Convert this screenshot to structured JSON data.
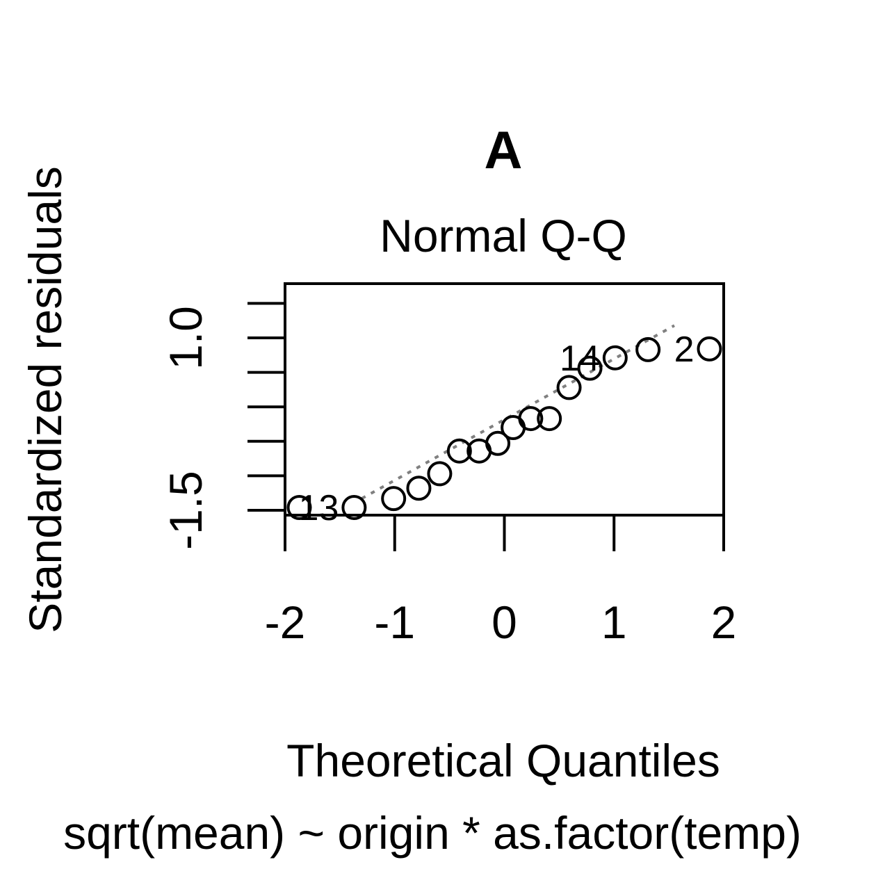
{
  "chart_data": {
    "type": "scatter",
    "panel_label": "A",
    "title": "Normal Q-Q",
    "xlabel": "Theoretical Quantiles",
    "ylabel": "Standardized residuals",
    "subtitle": "sqrt(mean) ~ origin * as.factor(temp)",
    "xlim": [
      -2.0,
      2.0
    ],
    "ylim": [
      -1.5,
      1.2
    ],
    "x_ticks": [
      -2,
      -1,
      0,
      1,
      2
    ],
    "x_tick_labels": [
      "-2",
      "-1",
      "0",
      "1",
      "2"
    ],
    "y_ticks": [
      -1.5,
      -1.0,
      -0.5,
      0.0,
      0.5,
      1.0,
      1.5
    ],
    "y_tick_labels": [
      "-1.5",
      "",
      "",
      "",
      "",
      "1.0",
      ""
    ],
    "points": [
      {
        "x": -1.87,
        "y": -1.46,
        "label": ""
      },
      {
        "x": -1.37,
        "y": -1.46,
        "label": "13"
      },
      {
        "x": -1.01,
        "y": -1.33,
        "label": ""
      },
      {
        "x": -0.78,
        "y": -1.18,
        "label": ""
      },
      {
        "x": -0.59,
        "y": -0.97,
        "label": ""
      },
      {
        "x": -0.41,
        "y": -0.64,
        "label": ""
      },
      {
        "x": -0.23,
        "y": -0.64,
        "label": ""
      },
      {
        "x": -0.06,
        "y": -0.53,
        "label": ""
      },
      {
        "x": 0.08,
        "y": -0.3,
        "label": ""
      },
      {
        "x": 0.24,
        "y": -0.17,
        "label": ""
      },
      {
        "x": 0.41,
        "y": -0.17,
        "label": ""
      },
      {
        "x": 0.59,
        "y": 0.28,
        "label": ""
      },
      {
        "x": 0.78,
        "y": 0.56,
        "label": ""
      },
      {
        "x": 1.01,
        "y": 0.71,
        "label": "14"
      },
      {
        "x": 1.31,
        "y": 0.83,
        "label": ""
      },
      {
        "x": 1.87,
        "y": 0.84,
        "label": "2"
      }
    ],
    "reference_line": {
      "intercept": -0.185,
      "slope": 0.88,
      "style": "dashed",
      "color": "#808080"
    },
    "grid": false
  }
}
